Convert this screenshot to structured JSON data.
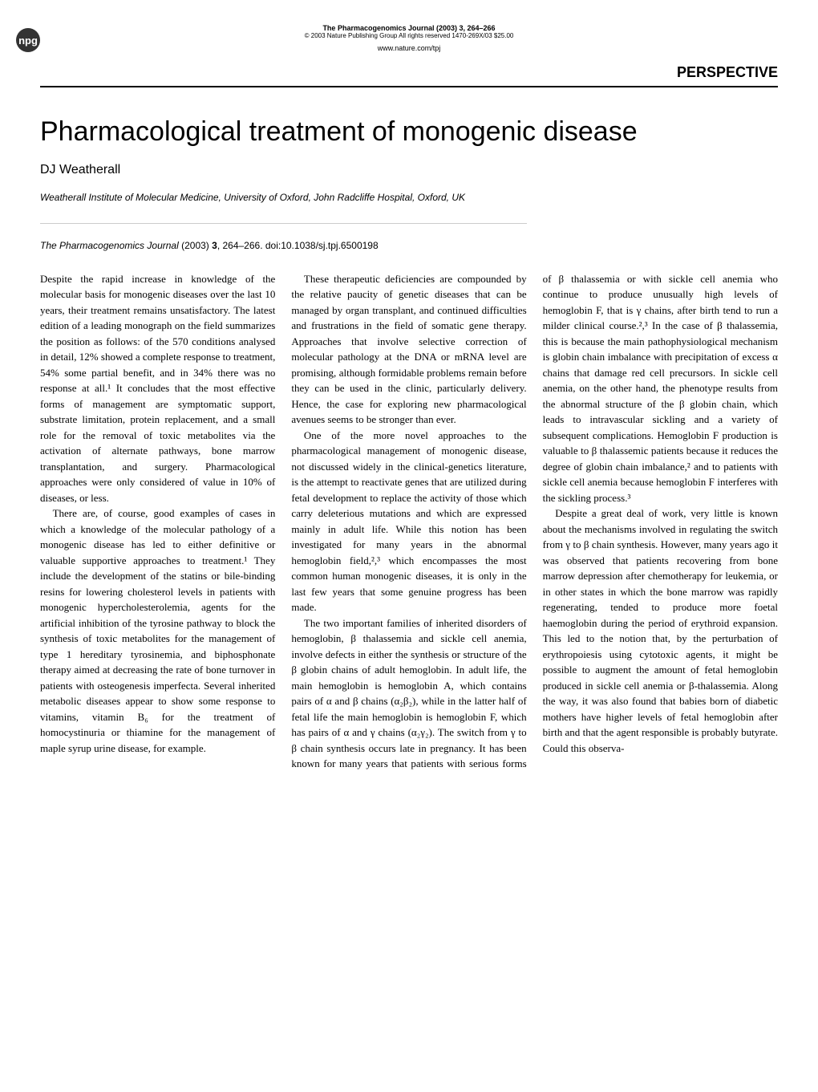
{
  "header": {
    "logo_text": "npg",
    "journal_line": "The Pharmacogenomics Journal (2003) 3, 264–266",
    "copyright_line": "© 2003 Nature Publishing Group All rights reserved 1470-269X/03 $25.00",
    "url": "www.nature.com/tpj",
    "section_label": "PERSPECTIVE"
  },
  "article": {
    "title": "Pharmacological treatment of monogenic disease",
    "author": "DJ Weatherall",
    "affiliation": "Weatherall Institute of Molecular Medicine, University of Oxford, John Radcliffe Hospital, Oxford, UK",
    "citation_journal": "The Pharmacogenomics Journal",
    "citation_year_vol": " (2003) ",
    "citation_vol": "3",
    "citation_pages": ", 264–266. doi:10.1038/sj.tpj.6500198"
  },
  "body": {
    "p1": "Despite the rapid increase in knowledge of the molecular basis for monogenic diseases over the last 10 years, their treatment remains unsatisfactory. The latest edition of a leading monograph on the field summarizes the position as follows: of the 570 conditions analysed in detail, 12% showed a complete response to treatment, 54% some partial benefit, and in 34% there was no response at all.¹ It concludes that the most effective forms of management are symptomatic support, substrate limitation, protein replacement, and a small role for the removal of toxic metabolites via the activation of alternate pathways, bone marrow transplantation, and surgery. Pharmacological approaches were only considered of value in 10% of diseases, or less.",
    "p2": "There are, of course, good examples of cases in which a knowledge of the molecular pathology of a monogenic disease has led to either definitive or valuable supportive approaches to treatment.¹ They include the development of the statins or bile-binding resins for lowering cholesterol levels in patients with monogenic hypercholesterolemia, agents for the artificial inhibition of the tyrosine pathway to block the synthesis of toxic metabolites for the management of type 1 hereditary tyrosinemia, and biphosphonate therapy aimed at decreasing the rate of bone turnover in patients with osteogenesis imperfecta. Several inherited metabolic diseases appear to show some response to vitamins, vitamin B₆ for the treatment of homocystinuria or thiamine for the management of maple syrup urine disease, for example.",
    "p3": "These therapeutic deficiencies are compounded by the relative paucity of genetic diseases that can be managed by organ transplant, and continued difficulties and frustrations in the field of somatic gene therapy. Approaches that involve selective correction of molecular pathology at the DNA or mRNA level are promising, although formidable problems remain before they can be used in the clinic, particularly delivery. Hence, the case for exploring new pharmacological avenues seems to be stronger than ever.",
    "p4": "One of the more novel approaches to the pharmacological management of monogenic disease, not discussed widely in the clinical-genetics literature, is the attempt to reactivate genes that are utilized during fetal development to replace the activity of those which carry deleterious mutations and which are expressed mainly in adult life. While this notion has been investigated for many years in the abnormal hemoglobin field,²,³ which encompasses the most common human monogenic diseases, it is only in the last few years that some genuine progress has been made.",
    "p5": "The two important families of inherited disorders of hemoglobin, β thalassemia and sickle cell anemia, involve defects in either the synthesis or structure of the β globin chains of adult hemoglobin. In adult life, the main hemoglobin is hemoglobin A, which contains pairs of α and β chains (α₂β₂), while in the latter half of fetal life the main hemoglobin is hemoglobin F, which has pairs of α and γ chains (α₂γ₂). The switch from γ to β chain synthesis occurs late in pregnancy. It has been known for many years that patients with serious forms of β thalassemia or with sickle cell anemia who continue to produce unusually high levels of hemoglobin F, that is γ chains, after birth tend to run a milder clinical course.²,³ In the case of β thalassemia, this is because the main pathophysiological mechanism is globin chain imbalance with precipitation of excess α chains that damage red cell precursors. In sickle cell anemia, on the other hand, the phenotype results from the abnormal structure of the β globin chain, which leads to intravascular sickling and a variety of subsequent complications. Hemoglobin F production is valuable to β thalassemic patients because it reduces the degree of globin chain imbalance,² and to patients with sickle cell anemia because hemoglobin F interferes with the sickling process.³",
    "p6": "Despite a great deal of work, very little is known about the mechanisms involved in regulating the switch from γ to β chain synthesis. However, many years ago it was observed that patients recovering from bone marrow depression after chemotherapy for leukemia, or in other states in which the bone marrow was rapidly regenerating, tended to produce more foetal haemoglobin during the period of erythroid expansion. This led to the notion that, by the perturbation of erythropoiesis using cytotoxic agents, it might be possible to augment the amount of fetal hemoglobin produced in sickle cell anemia or β-thalassemia. Along the way, it was also found that babies born of diabetic mothers have higher levels of fetal hemoglobin after birth and that the agent responsible is probably butyrate. Could this observa-"
  }
}
